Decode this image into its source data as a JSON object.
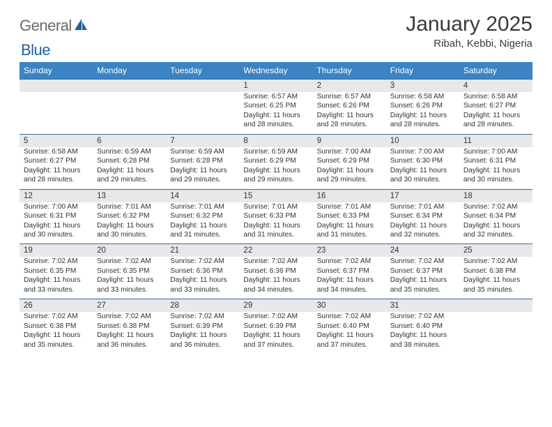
{
  "logo": {
    "text_general": "General",
    "text_blue": "Blue"
  },
  "title": "January 2025",
  "location": "Ribah, Kebbi, Nigeria",
  "colors": {
    "header_bg": "#3b83c3",
    "header_text": "#ffffff",
    "daynum_bg": "#e8e8e8",
    "row_border": "#2e6aa8",
    "body_text": "#333333",
    "logo_gray": "#6a6a6a",
    "logo_blue": "#1f5f9e"
  },
  "weekdays": [
    "Sunday",
    "Monday",
    "Tuesday",
    "Wednesday",
    "Thursday",
    "Friday",
    "Saturday"
  ],
  "weeks": [
    [
      {
        "n": "",
        "sr": "",
        "ss": "",
        "dl1": "",
        "dl2": ""
      },
      {
        "n": "",
        "sr": "",
        "ss": "",
        "dl1": "",
        "dl2": ""
      },
      {
        "n": "",
        "sr": "",
        "ss": "",
        "dl1": "",
        "dl2": ""
      },
      {
        "n": "1",
        "sr": "Sunrise: 6:57 AM",
        "ss": "Sunset: 6:25 PM",
        "dl1": "Daylight: 11 hours",
        "dl2": "and 28 minutes."
      },
      {
        "n": "2",
        "sr": "Sunrise: 6:57 AM",
        "ss": "Sunset: 6:26 PM",
        "dl1": "Daylight: 11 hours",
        "dl2": "and 28 minutes."
      },
      {
        "n": "3",
        "sr": "Sunrise: 6:58 AM",
        "ss": "Sunset: 6:26 PM",
        "dl1": "Daylight: 11 hours",
        "dl2": "and 28 minutes."
      },
      {
        "n": "4",
        "sr": "Sunrise: 6:58 AM",
        "ss": "Sunset: 6:27 PM",
        "dl1": "Daylight: 11 hours",
        "dl2": "and 28 minutes."
      }
    ],
    [
      {
        "n": "5",
        "sr": "Sunrise: 6:58 AM",
        "ss": "Sunset: 6:27 PM",
        "dl1": "Daylight: 11 hours",
        "dl2": "and 28 minutes."
      },
      {
        "n": "6",
        "sr": "Sunrise: 6:59 AM",
        "ss": "Sunset: 6:28 PM",
        "dl1": "Daylight: 11 hours",
        "dl2": "and 29 minutes."
      },
      {
        "n": "7",
        "sr": "Sunrise: 6:59 AM",
        "ss": "Sunset: 6:28 PM",
        "dl1": "Daylight: 11 hours",
        "dl2": "and 29 minutes."
      },
      {
        "n": "8",
        "sr": "Sunrise: 6:59 AM",
        "ss": "Sunset: 6:29 PM",
        "dl1": "Daylight: 11 hours",
        "dl2": "and 29 minutes."
      },
      {
        "n": "9",
        "sr": "Sunrise: 7:00 AM",
        "ss": "Sunset: 6:29 PM",
        "dl1": "Daylight: 11 hours",
        "dl2": "and 29 minutes."
      },
      {
        "n": "10",
        "sr": "Sunrise: 7:00 AM",
        "ss": "Sunset: 6:30 PM",
        "dl1": "Daylight: 11 hours",
        "dl2": "and 30 minutes."
      },
      {
        "n": "11",
        "sr": "Sunrise: 7:00 AM",
        "ss": "Sunset: 6:31 PM",
        "dl1": "Daylight: 11 hours",
        "dl2": "and 30 minutes."
      }
    ],
    [
      {
        "n": "12",
        "sr": "Sunrise: 7:00 AM",
        "ss": "Sunset: 6:31 PM",
        "dl1": "Daylight: 11 hours",
        "dl2": "and 30 minutes."
      },
      {
        "n": "13",
        "sr": "Sunrise: 7:01 AM",
        "ss": "Sunset: 6:32 PM",
        "dl1": "Daylight: 11 hours",
        "dl2": "and 30 minutes."
      },
      {
        "n": "14",
        "sr": "Sunrise: 7:01 AM",
        "ss": "Sunset: 6:32 PM",
        "dl1": "Daylight: 11 hours",
        "dl2": "and 31 minutes."
      },
      {
        "n": "15",
        "sr": "Sunrise: 7:01 AM",
        "ss": "Sunset: 6:33 PM",
        "dl1": "Daylight: 11 hours",
        "dl2": "and 31 minutes."
      },
      {
        "n": "16",
        "sr": "Sunrise: 7:01 AM",
        "ss": "Sunset: 6:33 PM",
        "dl1": "Daylight: 11 hours",
        "dl2": "and 31 minutes."
      },
      {
        "n": "17",
        "sr": "Sunrise: 7:01 AM",
        "ss": "Sunset: 6:34 PM",
        "dl1": "Daylight: 11 hours",
        "dl2": "and 32 minutes."
      },
      {
        "n": "18",
        "sr": "Sunrise: 7:02 AM",
        "ss": "Sunset: 6:34 PM",
        "dl1": "Daylight: 11 hours",
        "dl2": "and 32 minutes."
      }
    ],
    [
      {
        "n": "19",
        "sr": "Sunrise: 7:02 AM",
        "ss": "Sunset: 6:35 PM",
        "dl1": "Daylight: 11 hours",
        "dl2": "and 33 minutes."
      },
      {
        "n": "20",
        "sr": "Sunrise: 7:02 AM",
        "ss": "Sunset: 6:35 PM",
        "dl1": "Daylight: 11 hours",
        "dl2": "and 33 minutes."
      },
      {
        "n": "21",
        "sr": "Sunrise: 7:02 AM",
        "ss": "Sunset: 6:36 PM",
        "dl1": "Daylight: 11 hours",
        "dl2": "and 33 minutes."
      },
      {
        "n": "22",
        "sr": "Sunrise: 7:02 AM",
        "ss": "Sunset: 6:36 PM",
        "dl1": "Daylight: 11 hours",
        "dl2": "and 34 minutes."
      },
      {
        "n": "23",
        "sr": "Sunrise: 7:02 AM",
        "ss": "Sunset: 6:37 PM",
        "dl1": "Daylight: 11 hours",
        "dl2": "and 34 minutes."
      },
      {
        "n": "24",
        "sr": "Sunrise: 7:02 AM",
        "ss": "Sunset: 6:37 PM",
        "dl1": "Daylight: 11 hours",
        "dl2": "and 35 minutes."
      },
      {
        "n": "25",
        "sr": "Sunrise: 7:02 AM",
        "ss": "Sunset: 6:38 PM",
        "dl1": "Daylight: 11 hours",
        "dl2": "and 35 minutes."
      }
    ],
    [
      {
        "n": "26",
        "sr": "Sunrise: 7:02 AM",
        "ss": "Sunset: 6:38 PM",
        "dl1": "Daylight: 11 hours",
        "dl2": "and 35 minutes."
      },
      {
        "n": "27",
        "sr": "Sunrise: 7:02 AM",
        "ss": "Sunset: 6:38 PM",
        "dl1": "Daylight: 11 hours",
        "dl2": "and 36 minutes."
      },
      {
        "n": "28",
        "sr": "Sunrise: 7:02 AM",
        "ss": "Sunset: 6:39 PM",
        "dl1": "Daylight: 11 hours",
        "dl2": "and 36 minutes."
      },
      {
        "n": "29",
        "sr": "Sunrise: 7:02 AM",
        "ss": "Sunset: 6:39 PM",
        "dl1": "Daylight: 11 hours",
        "dl2": "and 37 minutes."
      },
      {
        "n": "30",
        "sr": "Sunrise: 7:02 AM",
        "ss": "Sunset: 6:40 PM",
        "dl1": "Daylight: 11 hours",
        "dl2": "and 37 minutes."
      },
      {
        "n": "31",
        "sr": "Sunrise: 7:02 AM",
        "ss": "Sunset: 6:40 PM",
        "dl1": "Daylight: 11 hours",
        "dl2": "and 38 minutes."
      },
      {
        "n": "",
        "sr": "",
        "ss": "",
        "dl1": "",
        "dl2": ""
      }
    ]
  ]
}
